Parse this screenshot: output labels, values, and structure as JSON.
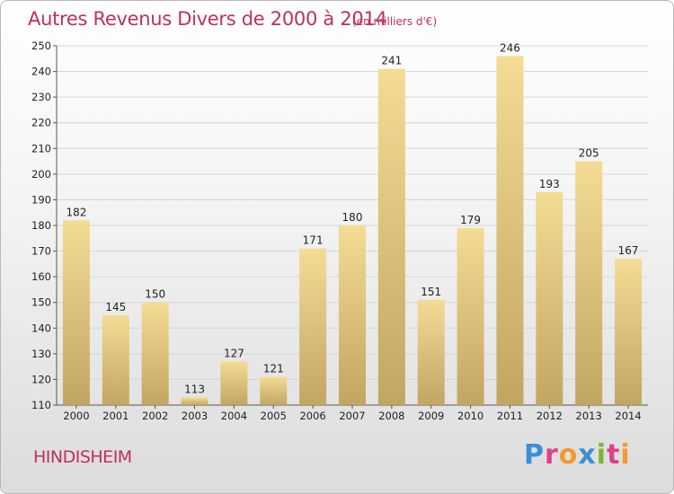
{
  "header": {
    "title": "Autres Revenus Divers de 2000 à 2014",
    "subtitle": "(en milliers d'€)"
  },
  "footer": {
    "commune": "HINDISHEIM",
    "logo_letters": [
      "P",
      "r",
      "o",
      "x",
      "i",
      "t",
      "i"
    ],
    "logo_colors": [
      "#3a8fd6",
      "#e0408a",
      "#f29a2e",
      "#3a8fd6",
      "#7ab735",
      "#e0408a",
      "#f29a2e"
    ]
  },
  "colors": {
    "title": "#c0305a",
    "bar_light": "#f4dc95",
    "bar_dark": "#c2a561"
  },
  "chart_data": {
    "type": "bar",
    "categories": [
      "2000",
      "2001",
      "2002",
      "2003",
      "2004",
      "2005",
      "2006",
      "2007",
      "2008",
      "2009",
      "2010",
      "2011",
      "2012",
      "2013",
      "2014"
    ],
    "values": [
      182,
      145,
      150,
      113,
      127,
      121,
      171,
      180,
      241,
      151,
      179,
      246,
      193,
      205,
      167
    ],
    "ylim": [
      110,
      250
    ],
    "yticks": [
      110,
      120,
      130,
      140,
      150,
      160,
      170,
      180,
      190,
      200,
      210,
      220,
      230,
      240,
      250
    ],
    "grid": true
  }
}
